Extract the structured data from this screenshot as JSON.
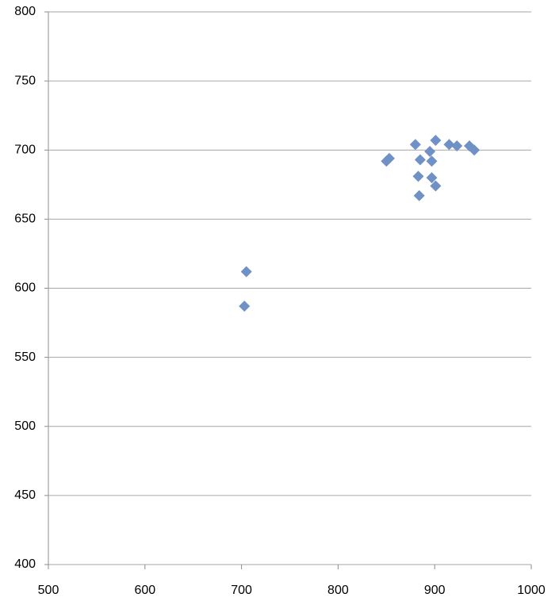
{
  "chart_data": {
    "type": "scatter",
    "x": [
      705,
      703,
      850,
      853,
      880,
      901,
      885,
      895,
      897,
      883,
      897,
      901,
      884,
      915,
      923,
      936,
      941
    ],
    "values": [
      612,
      587,
      692,
      694,
      704,
      707,
      693,
      699,
      692,
      681,
      680,
      674,
      667,
      704,
      703,
      703,
      700
    ],
    "color": "#6f91c6",
    "xlim": [
      500,
      1000
    ],
    "xticks": [
      500,
      600,
      700,
      800,
      900,
      1000
    ],
    "ylim": [
      400,
      800
    ],
    "yticks": [
      400,
      450,
      500,
      550,
      600,
      650,
      700,
      750,
      800
    ],
    "grid": true
  }
}
